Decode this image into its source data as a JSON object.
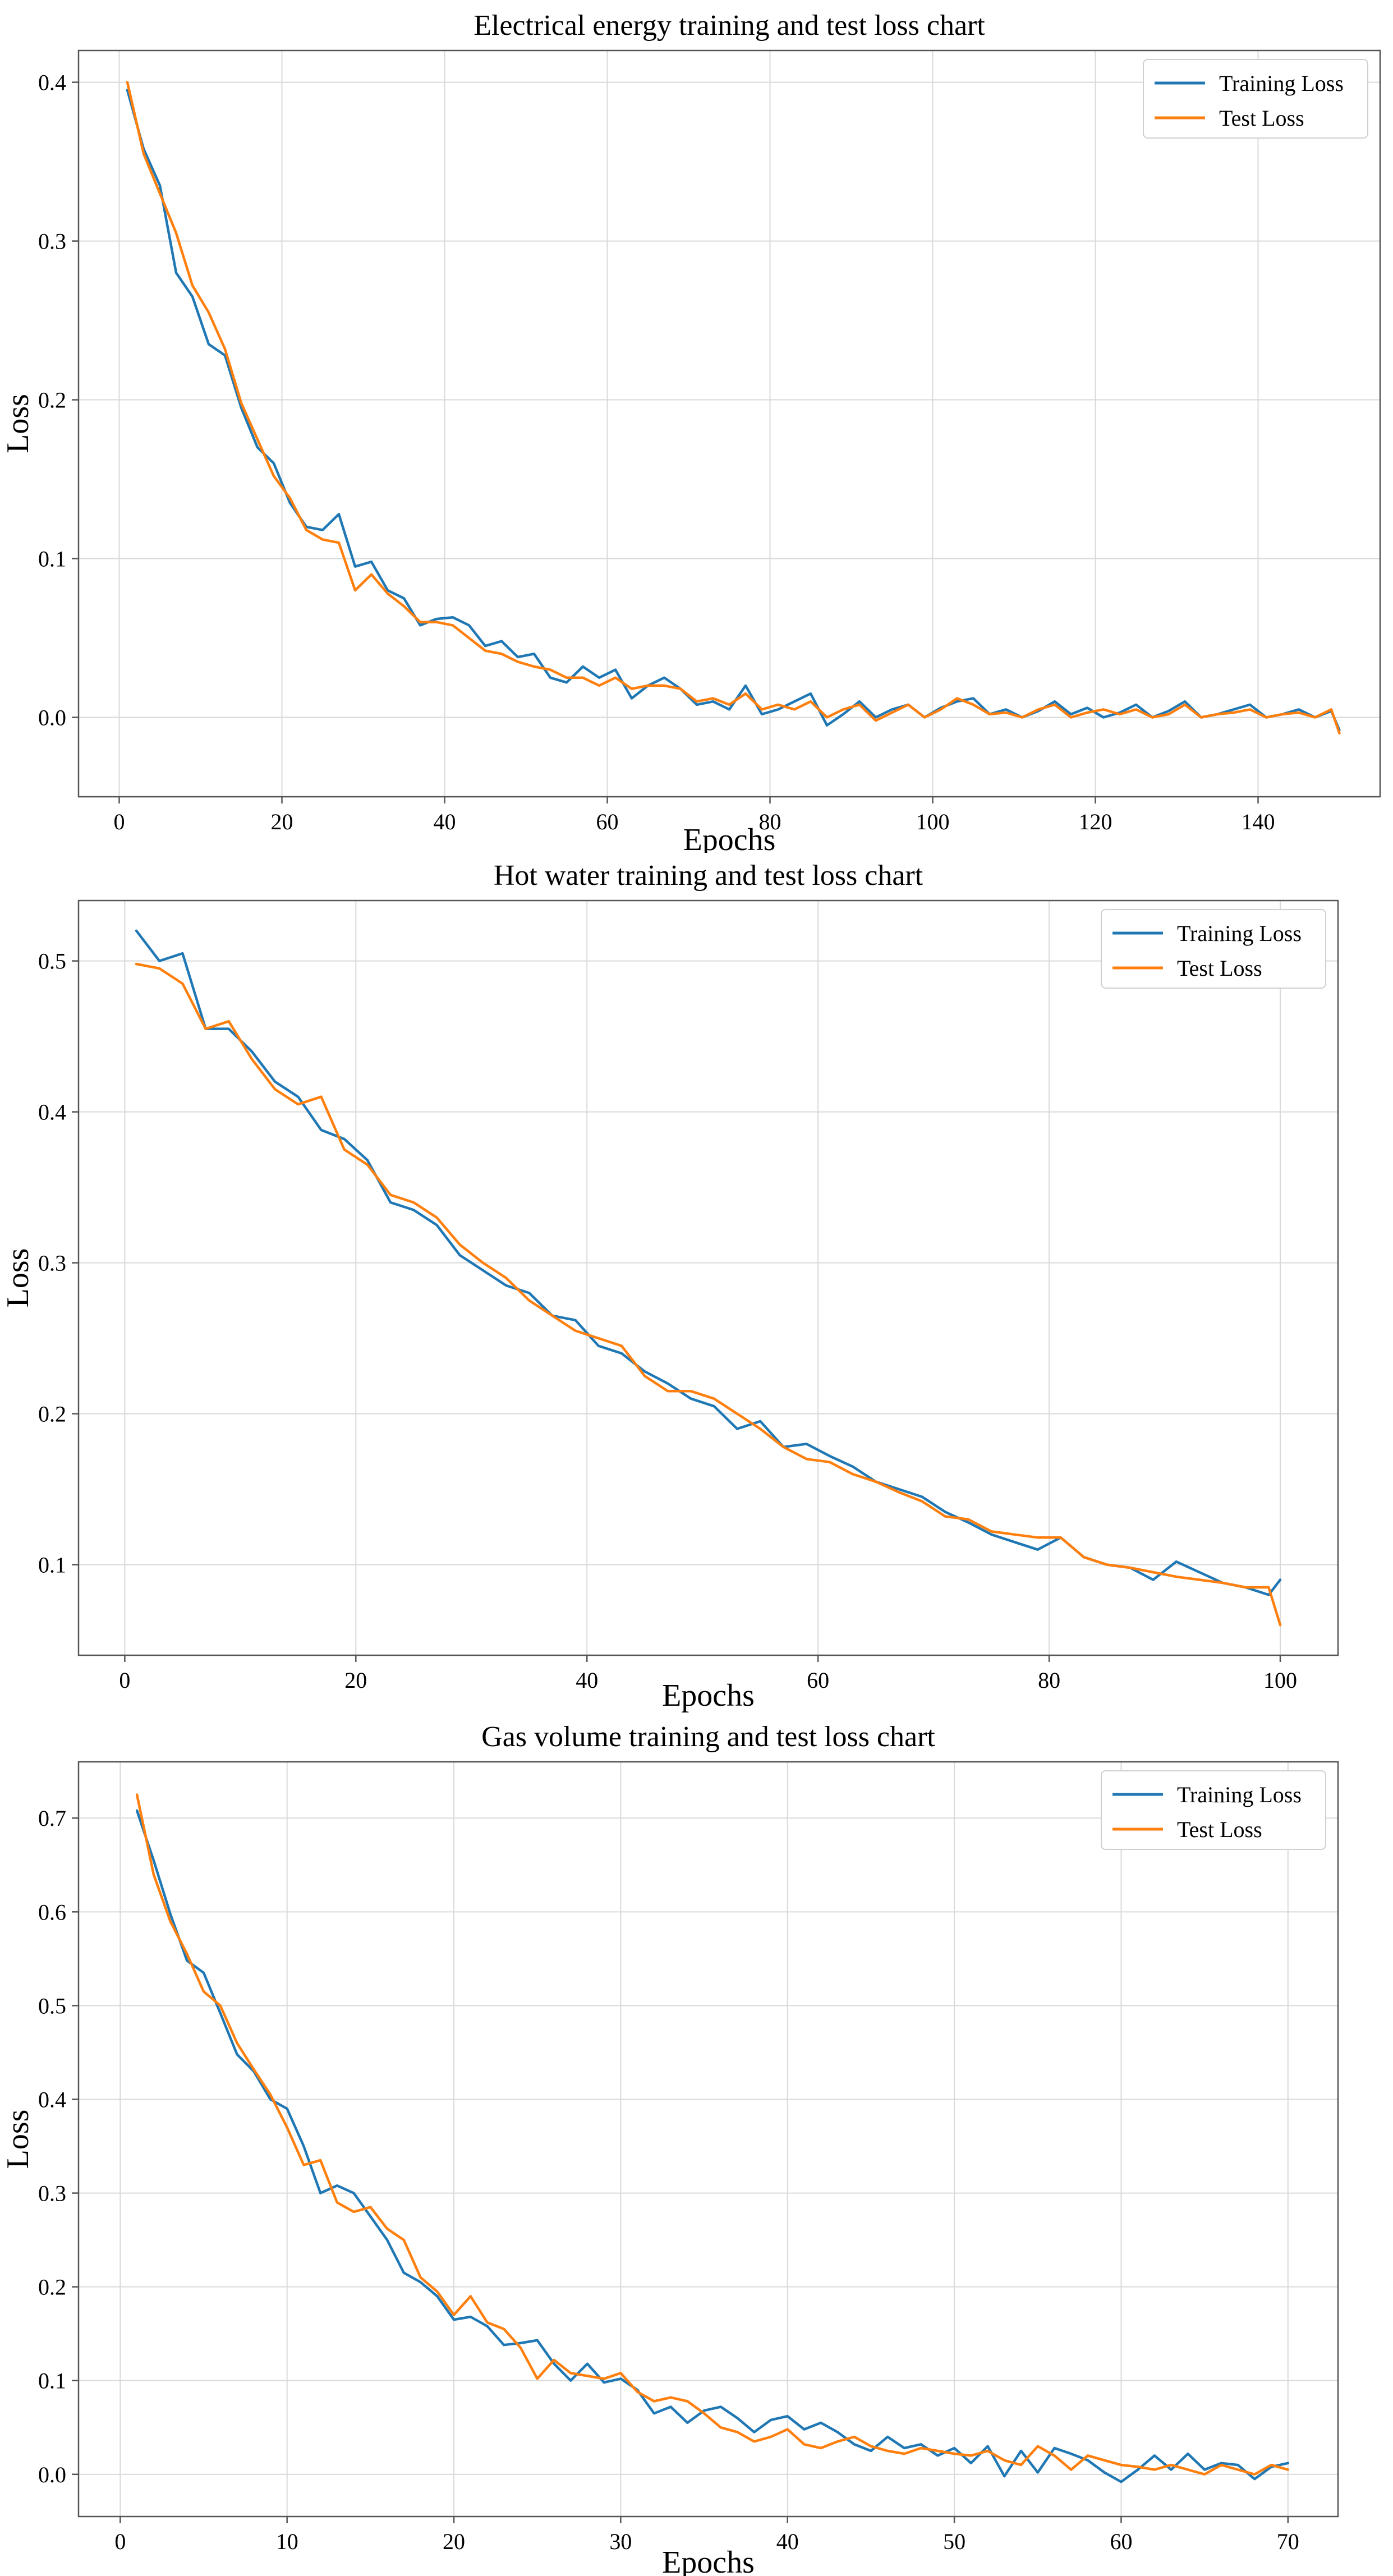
{
  "colors": {
    "training": "#1f77b4",
    "test": "#ff7f0e"
  },
  "chart_data": [
    {
      "type": "line",
      "title": "Electrical energy training and test loss chart",
      "xlabel": "Epochs",
      "ylabel": "Loss",
      "xlim": [
        -5,
        155
      ],
      "ylim": [
        -0.05,
        0.42
      ],
      "xticks": [
        0,
        20,
        40,
        60,
        80,
        100,
        120,
        140
      ],
      "yticks": [
        0.0,
        0.1,
        0.2,
        0.3,
        0.4
      ],
      "ytick_labels": [
        "0.0",
        "0.1",
        "0.2",
        "0.3",
        "0.4"
      ],
      "legend": {
        "position": "top-right",
        "entries": [
          "Training Loss",
          "Test Loss"
        ]
      },
      "series": [
        {
          "name": "Training Loss",
          "color": "#1f77b4",
          "x": [
            1,
            3,
            5,
            7,
            9,
            11,
            13,
            15,
            17,
            19,
            21,
            23,
            25,
            27,
            29,
            31,
            33,
            35,
            37,
            39,
            41,
            43,
            45,
            47,
            49,
            51,
            53,
            55,
            57,
            59,
            61,
            63,
            65,
            67,
            69,
            71,
            73,
            75,
            77,
            79,
            81,
            83,
            85,
            87,
            89,
            91,
            93,
            95,
            97,
            99,
            101,
            103,
            105,
            107,
            109,
            111,
            113,
            115,
            117,
            119,
            121,
            123,
            125,
            127,
            129,
            131,
            133,
            135,
            137,
            139,
            141,
            143,
            145,
            147,
            149,
            150
          ],
          "y": [
            0.395,
            0.358,
            0.335,
            0.28,
            0.265,
            0.235,
            0.228,
            0.195,
            0.17,
            0.16,
            0.135,
            0.12,
            0.118,
            0.128,
            0.095,
            0.098,
            0.08,
            0.075,
            0.058,
            0.062,
            0.063,
            0.058,
            0.045,
            0.048,
            0.038,
            0.04,
            0.025,
            0.022,
            0.032,
            0.025,
            0.03,
            0.012,
            0.02,
            0.025,
            0.018,
            0.008,
            0.01,
            0.005,
            0.02,
            0.002,
            0.005,
            0.01,
            0.015,
            -0.005,
            0.002,
            0.01,
            0.0,
            0.005,
            0.008,
            0.0,
            0.006,
            0.01,
            0.012,
            0.002,
            0.005,
            0.0,
            0.004,
            0.01,
            0.002,
            0.006,
            0.0,
            0.003,
            0.008,
            0.0,
            0.004,
            0.01,
            0.0,
            0.002,
            0.005,
            0.008,
            0.0,
            0.002,
            0.005,
            0.0,
            0.004,
            -0.008
          ]
        },
        {
          "name": "Test Loss",
          "color": "#ff7f0e",
          "x": [
            1,
            3,
            5,
            7,
            9,
            11,
            13,
            15,
            17,
            19,
            21,
            23,
            25,
            27,
            29,
            31,
            33,
            35,
            37,
            39,
            41,
            43,
            45,
            47,
            49,
            51,
            53,
            55,
            57,
            59,
            61,
            63,
            65,
            67,
            69,
            71,
            73,
            75,
            77,
            79,
            81,
            83,
            85,
            87,
            89,
            91,
            93,
            95,
            97,
            99,
            101,
            103,
            105,
            107,
            109,
            111,
            113,
            115,
            117,
            119,
            121,
            123,
            125,
            127,
            129,
            131,
            133,
            135,
            137,
            139,
            141,
            143,
            145,
            147,
            149,
            150
          ],
          "y": [
            0.4,
            0.355,
            0.33,
            0.305,
            0.272,
            0.255,
            0.232,
            0.198,
            0.175,
            0.152,
            0.138,
            0.118,
            0.112,
            0.11,
            0.08,
            0.09,
            0.078,
            0.07,
            0.06,
            0.06,
            0.058,
            0.05,
            0.042,
            0.04,
            0.035,
            0.032,
            0.03,
            0.025,
            0.025,
            0.02,
            0.025,
            0.018,
            0.02,
            0.02,
            0.018,
            0.01,
            0.012,
            0.008,
            0.015,
            0.005,
            0.008,
            0.005,
            0.01,
            0.0,
            0.005,
            0.008,
            -0.002,
            0.003,
            0.008,
            0.0,
            0.005,
            0.012,
            0.008,
            0.002,
            0.003,
            0.0,
            0.005,
            0.008,
            0.0,
            0.003,
            0.005,
            0.002,
            0.005,
            0.0,
            0.002,
            0.008,
            0.0,
            0.002,
            0.003,
            0.005,
            0.0,
            0.002,
            0.003,
            0.0,
            0.005,
            -0.01
          ]
        }
      ]
    },
    {
      "type": "line",
      "title": "Hot water training and test loss chart",
      "xlabel": "Epochs",
      "ylabel": "Loss",
      "xlim": [
        -4,
        105
      ],
      "ylim": [
        0.04,
        0.54
      ],
      "xticks": [
        0,
        20,
        40,
        60,
        80,
        100
      ],
      "yticks": [
        0.1,
        0.2,
        0.3,
        0.4,
        0.5
      ],
      "ytick_labels": [
        "0.1",
        "0.2",
        "0.3",
        "0.4",
        "0.5"
      ],
      "legend": {
        "position": "top-right",
        "entries": [
          "Training Loss",
          "Test Loss"
        ]
      },
      "series": [
        {
          "name": "Training Loss",
          "color": "#1f77b4",
          "x": [
            1,
            3,
            5,
            7,
            9,
            11,
            13,
            15,
            17,
            19,
            21,
            23,
            25,
            27,
            29,
            31,
            33,
            35,
            37,
            39,
            41,
            43,
            45,
            47,
            49,
            51,
            53,
            55,
            57,
            59,
            61,
            63,
            65,
            67,
            69,
            71,
            73,
            75,
            77,
            79,
            81,
            83,
            85,
            87,
            89,
            91,
            93,
            95,
            97,
            99,
            100
          ],
          "y": [
            0.52,
            0.5,
            0.505,
            0.455,
            0.455,
            0.44,
            0.42,
            0.41,
            0.388,
            0.382,
            0.368,
            0.34,
            0.335,
            0.325,
            0.305,
            0.295,
            0.285,
            0.28,
            0.265,
            0.262,
            0.245,
            0.24,
            0.228,
            0.22,
            0.21,
            0.205,
            0.19,
            0.195,
            0.178,
            0.18,
            0.172,
            0.165,
            0.155,
            0.15,
            0.145,
            0.135,
            0.128,
            0.12,
            0.115,
            0.11,
            0.118,
            0.105,
            0.1,
            0.098,
            0.09,
            0.102,
            0.095,
            0.088,
            0.085,
            0.08,
            0.09
          ]
        },
        {
          "name": "Test Loss",
          "color": "#ff7f0e",
          "x": [
            1,
            3,
            5,
            7,
            9,
            11,
            13,
            15,
            17,
            19,
            21,
            23,
            25,
            27,
            29,
            31,
            33,
            35,
            37,
            39,
            41,
            43,
            45,
            47,
            49,
            51,
            53,
            55,
            57,
            59,
            61,
            63,
            65,
            67,
            69,
            71,
            73,
            75,
            77,
            79,
            81,
            83,
            85,
            87,
            89,
            91,
            93,
            95,
            97,
            99,
            100
          ],
          "y": [
            0.498,
            0.495,
            0.485,
            0.455,
            0.46,
            0.435,
            0.415,
            0.405,
            0.41,
            0.375,
            0.365,
            0.345,
            0.34,
            0.33,
            0.312,
            0.3,
            0.29,
            0.275,
            0.265,
            0.255,
            0.25,
            0.245,
            0.225,
            0.215,
            0.215,
            0.21,
            0.2,
            0.19,
            0.178,
            0.17,
            0.168,
            0.16,
            0.155,
            0.148,
            0.142,
            0.132,
            0.13,
            0.122,
            0.12,
            0.118,
            0.118,
            0.105,
            0.1,
            0.098,
            0.095,
            0.092,
            0.09,
            0.088,
            0.085,
            0.085,
            0.06
          ]
        }
      ]
    },
    {
      "type": "line",
      "title": "Gas volume training and test loss chart",
      "xlabel": "Epochs",
      "ylabel": "Loss",
      "xlim": [
        -2.5,
        73
      ],
      "ylim": [
        -0.045,
        0.76
      ],
      "xticks": [
        0,
        10,
        20,
        30,
        40,
        50,
        60,
        70
      ],
      "yticks": [
        0.0,
        0.1,
        0.2,
        0.3,
        0.4,
        0.5,
        0.6,
        0.7
      ],
      "ytick_labels": [
        "0.0",
        "0.1",
        "0.2",
        "0.3",
        "0.4",
        "0.5",
        "0.6",
        "0.7"
      ],
      "legend": {
        "position": "top-right",
        "entries": [
          "Training Loss",
          "Test Loss"
        ]
      },
      "series": [
        {
          "name": "Training Loss",
          "color": "#1f77b4",
          "x": [
            1,
            2,
            3,
            4,
            5,
            6,
            7,
            8,
            9,
            10,
            11,
            12,
            13,
            14,
            15,
            16,
            17,
            18,
            19,
            20,
            21,
            22,
            23,
            24,
            25,
            26,
            27,
            28,
            29,
            30,
            31,
            32,
            33,
            34,
            35,
            36,
            37,
            38,
            39,
            40,
            41,
            42,
            43,
            44,
            45,
            46,
            47,
            48,
            49,
            50,
            51,
            52,
            53,
            54,
            55,
            56,
            57,
            58,
            59,
            60,
            61,
            62,
            63,
            64,
            65,
            66,
            67,
            68,
            69,
            70
          ],
          "y": [
            0.708,
            0.655,
            0.598,
            0.548,
            0.535,
            0.492,
            0.448,
            0.43,
            0.4,
            0.39,
            0.35,
            0.3,
            0.308,
            0.3,
            0.275,
            0.25,
            0.215,
            0.205,
            0.19,
            0.165,
            0.168,
            0.158,
            0.138,
            0.14,
            0.143,
            0.118,
            0.1,
            0.118,
            0.098,
            0.102,
            0.09,
            0.065,
            0.072,
            0.055,
            0.068,
            0.072,
            0.06,
            0.045,
            0.058,
            0.062,
            0.048,
            0.055,
            0.045,
            0.032,
            0.025,
            0.04,
            0.028,
            0.032,
            0.02,
            0.028,
            0.012,
            0.03,
            -0.002,
            0.025,
            0.002,
            0.028,
            0.022,
            0.015,
            0.002,
            -0.008,
            0.005,
            0.02,
            0.005,
            0.022,
            0.005,
            0.012,
            0.01,
            -0.005,
            0.008,
            0.012
          ]
        },
        {
          "name": "Test Loss",
          "color": "#ff7f0e",
          "x": [
            1,
            2,
            3,
            4,
            5,
            6,
            7,
            8,
            9,
            10,
            11,
            12,
            13,
            14,
            15,
            16,
            17,
            18,
            19,
            20,
            21,
            22,
            23,
            24,
            25,
            26,
            27,
            28,
            29,
            30,
            31,
            32,
            33,
            34,
            35,
            36,
            37,
            38,
            39,
            40,
            41,
            42,
            43,
            44,
            45,
            46,
            47,
            48,
            49,
            50,
            51,
            52,
            53,
            54,
            55,
            56,
            57,
            58,
            59,
            60,
            61,
            62,
            63,
            64,
            65,
            66,
            67,
            68,
            69,
            70
          ],
          "y": [
            0.725,
            0.64,
            0.59,
            0.555,
            0.515,
            0.5,
            0.46,
            0.432,
            0.405,
            0.37,
            0.33,
            0.335,
            0.29,
            0.28,
            0.285,
            0.262,
            0.25,
            0.21,
            0.195,
            0.17,
            0.19,
            0.162,
            0.155,
            0.135,
            0.102,
            0.122,
            0.108,
            0.105,
            0.102,
            0.108,
            0.088,
            0.078,
            0.082,
            0.078,
            0.065,
            0.05,
            0.045,
            0.035,
            0.04,
            0.048,
            0.032,
            0.028,
            0.035,
            0.04,
            0.03,
            0.025,
            0.022,
            0.028,
            0.025,
            0.022,
            0.02,
            0.025,
            0.015,
            0.01,
            0.03,
            0.02,
            0.005,
            0.02,
            0.015,
            0.01,
            0.008,
            0.005,
            0.01,
            0.005,
            0.0,
            0.01,
            0.005,
            0.0,
            0.01,
            0.005
          ]
        }
      ]
    }
  ]
}
